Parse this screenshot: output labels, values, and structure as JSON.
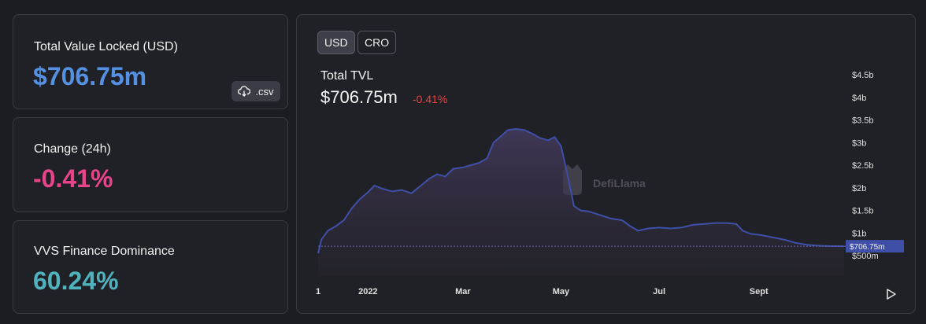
{
  "stats": {
    "tvl": {
      "label": "Total Value Locked (USD)",
      "value": "$706.75m",
      "color": "#5591e3"
    },
    "csv_label": ".csv",
    "change": {
      "label": "Change (24h)",
      "value": "-0.41%",
      "color": "#e8448a"
    },
    "dominance": {
      "label": "VVS Finance Dominance",
      "value": "60.24%",
      "color": "#4fb2bd"
    }
  },
  "toggles": [
    {
      "label": "USD",
      "active": true
    },
    {
      "label": "CRO",
      "active": false
    }
  ],
  "watermark": "DefiLlama",
  "chart_data": {
    "type": "area",
    "title": "Total TVL",
    "current_value_label": "$706.75m",
    "current_change_label": "-0.41%",
    "current_value": 0.70675,
    "y_unit": "billion USD",
    "ylim": [
      0.5,
      4.5
    ],
    "y_ticks": [
      {
        "v": 0.5,
        "label": "$500m"
      },
      {
        "v": 1.0,
        "label": "$1b"
      },
      {
        "v": 1.5,
        "label": "$1.5b"
      },
      {
        "v": 2.0,
        "label": "$2b"
      },
      {
        "v": 2.5,
        "label": "$2.5b"
      },
      {
        "v": 3.0,
        "label": "$3b"
      },
      {
        "v": 3.5,
        "label": "$3.5b"
      },
      {
        "v": 4.0,
        "label": "$4b"
      },
      {
        "v": 4.5,
        "label": "$4.5b"
      }
    ],
    "x_ticks": [
      {
        "date": "2021-12-01",
        "label": "1"
      },
      {
        "date": "2022-01-01",
        "label": "2022"
      },
      {
        "date": "2022-03-01",
        "label": "Mar"
      },
      {
        "date": "2022-05-01",
        "label": "May"
      },
      {
        "date": "2022-07-01",
        "label": "Jul"
      },
      {
        "date": "2022-09-01",
        "label": "Sept"
      }
    ],
    "x_range": [
      "2021-12-01",
      "2022-10-24"
    ],
    "line_color": "#3f4fa8",
    "series": [
      {
        "points": [
          [
            "2021-12-01",
            0.55
          ],
          [
            "2021-12-03",
            0.85
          ],
          [
            "2021-12-07",
            1.05
          ],
          [
            "2021-12-12",
            1.15
          ],
          [
            "2021-12-17",
            1.28
          ],
          [
            "2021-12-22",
            1.55
          ],
          [
            "2021-12-27",
            1.75
          ],
          [
            "2022-01-01",
            1.9
          ],
          [
            "2022-01-05",
            2.05
          ],
          [
            "2022-01-10",
            1.98
          ],
          [
            "2022-01-16",
            1.92
          ],
          [
            "2022-01-22",
            1.95
          ],
          [
            "2022-01-28",
            1.88
          ],
          [
            "2022-02-03",
            2.05
          ],
          [
            "2022-02-08",
            2.2
          ],
          [
            "2022-02-13",
            2.3
          ],
          [
            "2022-02-18",
            2.25
          ],
          [
            "2022-02-23",
            2.42
          ],
          [
            "2022-03-01",
            2.45
          ],
          [
            "2022-03-06",
            2.5
          ],
          [
            "2022-03-11",
            2.55
          ],
          [
            "2022-03-16",
            2.65
          ],
          [
            "2022-03-20",
            3.0
          ],
          [
            "2022-03-25",
            3.15
          ],
          [
            "2022-03-29",
            3.28
          ],
          [
            "2022-04-03",
            3.3
          ],
          [
            "2022-04-08",
            3.28
          ],
          [
            "2022-04-13",
            3.2
          ],
          [
            "2022-04-18",
            3.1
          ],
          [
            "2022-04-23",
            3.05
          ],
          [
            "2022-04-27",
            3.12
          ],
          [
            "2022-05-01",
            2.92
          ],
          [
            "2022-05-05",
            2.3
          ],
          [
            "2022-05-09",
            1.6
          ],
          [
            "2022-05-13",
            1.5
          ],
          [
            "2022-05-18",
            1.48
          ],
          [
            "2022-05-25",
            1.4
          ],
          [
            "2022-06-01",
            1.32
          ],
          [
            "2022-06-08",
            1.28
          ],
          [
            "2022-06-13",
            1.15
          ],
          [
            "2022-06-18",
            1.05
          ],
          [
            "2022-06-24",
            1.1
          ],
          [
            "2022-07-01",
            1.12
          ],
          [
            "2022-07-08",
            1.1
          ],
          [
            "2022-07-15",
            1.12
          ],
          [
            "2022-07-22",
            1.18
          ],
          [
            "2022-07-29",
            1.2
          ],
          [
            "2022-08-05",
            1.22
          ],
          [
            "2022-08-12",
            1.22
          ],
          [
            "2022-08-18",
            1.2
          ],
          [
            "2022-08-22",
            1.05
          ],
          [
            "2022-08-27",
            0.98
          ],
          [
            "2022-09-03",
            0.95
          ],
          [
            "2022-09-10",
            0.9
          ],
          [
            "2022-09-17",
            0.85
          ],
          [
            "2022-09-24",
            0.78
          ],
          [
            "2022-10-01",
            0.74
          ],
          [
            "2022-10-08",
            0.72
          ],
          [
            "2022-10-15",
            0.71
          ],
          [
            "2022-10-24",
            0.70675
          ]
        ]
      }
    ],
    "grid": false
  }
}
